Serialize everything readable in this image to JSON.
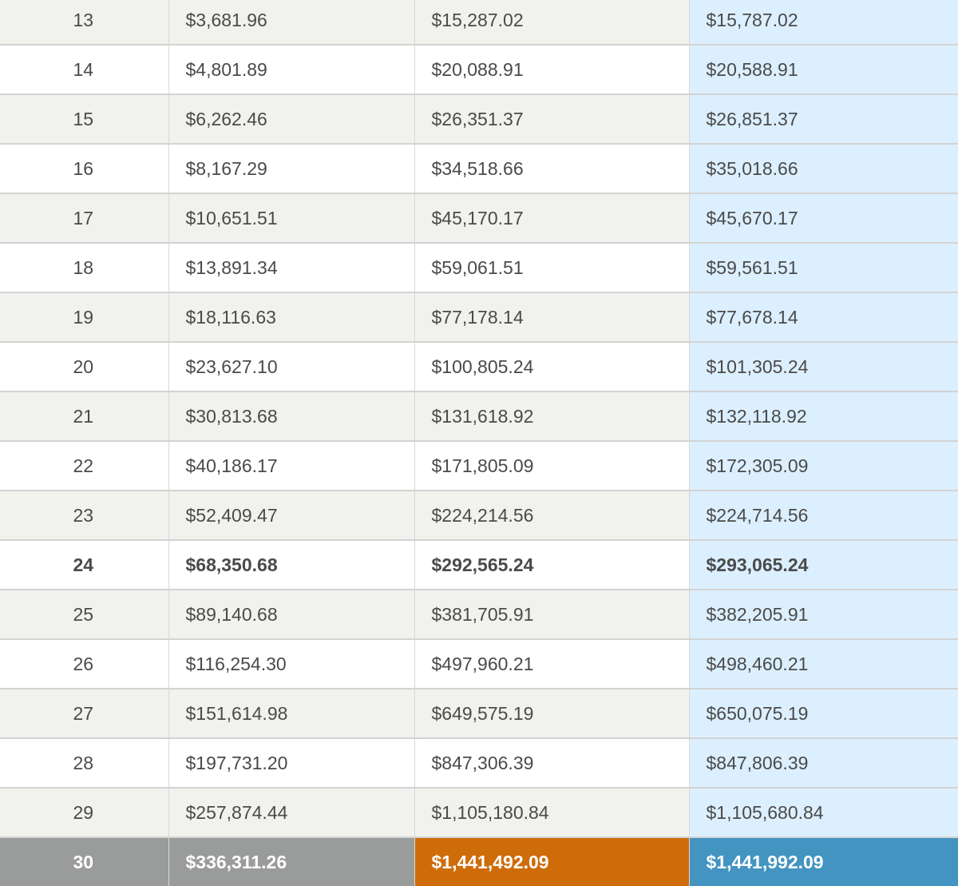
{
  "rows": [
    {
      "year": "13",
      "interest": "$3,681.96",
      "balance": "$15,287.02",
      "total": "$15,787.02"
    },
    {
      "year": "14",
      "interest": "$4,801.89",
      "balance": "$20,088.91",
      "total": "$20,588.91"
    },
    {
      "year": "15",
      "interest": "$6,262.46",
      "balance": "$26,351.37",
      "total": "$26,851.37"
    },
    {
      "year": "16",
      "interest": "$8,167.29",
      "balance": "$34,518.66",
      "total": "$35,018.66"
    },
    {
      "year": "17",
      "interest": "$10,651.51",
      "balance": "$45,170.17",
      "total": "$45,670.17"
    },
    {
      "year": "18",
      "interest": "$13,891.34",
      "balance": "$59,061.51",
      "total": "$59,561.51"
    },
    {
      "year": "19",
      "interest": "$18,116.63",
      "balance": "$77,178.14",
      "total": "$77,678.14"
    },
    {
      "year": "20",
      "interest": "$23,627.10",
      "balance": "$100,805.24",
      "total": "$101,305.24"
    },
    {
      "year": "21",
      "interest": "$30,813.68",
      "balance": "$131,618.92",
      "total": "$132,118.92"
    },
    {
      "year": "22",
      "interest": "$40,186.17",
      "balance": "$171,805.09",
      "total": "$172,305.09"
    },
    {
      "year": "23",
      "interest": "$52,409.47",
      "balance": "$224,214.56",
      "total": "$224,714.56"
    },
    {
      "year": "24",
      "interest": "$68,350.68",
      "balance": "$292,565.24",
      "total": "$293,065.24"
    },
    {
      "year": "25",
      "interest": "$89,140.68",
      "balance": "$381,705.91",
      "total": "$382,205.91"
    },
    {
      "year": "26",
      "interest": "$116,254.30",
      "balance": "$497,960.21",
      "total": "$498,460.21"
    },
    {
      "year": "27",
      "interest": "$151,614.98",
      "balance": "$649,575.19",
      "total": "$650,075.19"
    },
    {
      "year": "28",
      "interest": "$197,731.20",
      "balance": "$847,306.39",
      "total": "$847,806.39"
    },
    {
      "year": "29",
      "interest": "$257,874.44",
      "balance": "$1,105,180.84",
      "total": "$1,105,680.84"
    }
  ],
  "total_row": {
    "year": "30",
    "interest": "$336,311.26",
    "balance": "$1,441,492.09",
    "total": "$1,441,992.09"
  },
  "colors": {
    "row_alt": "#f1f2ee",
    "highlight_column": "#dcefff",
    "total_gray": "#9a9b9b",
    "total_orange": "#cf6c0a",
    "total_blue": "#4394c1"
  }
}
